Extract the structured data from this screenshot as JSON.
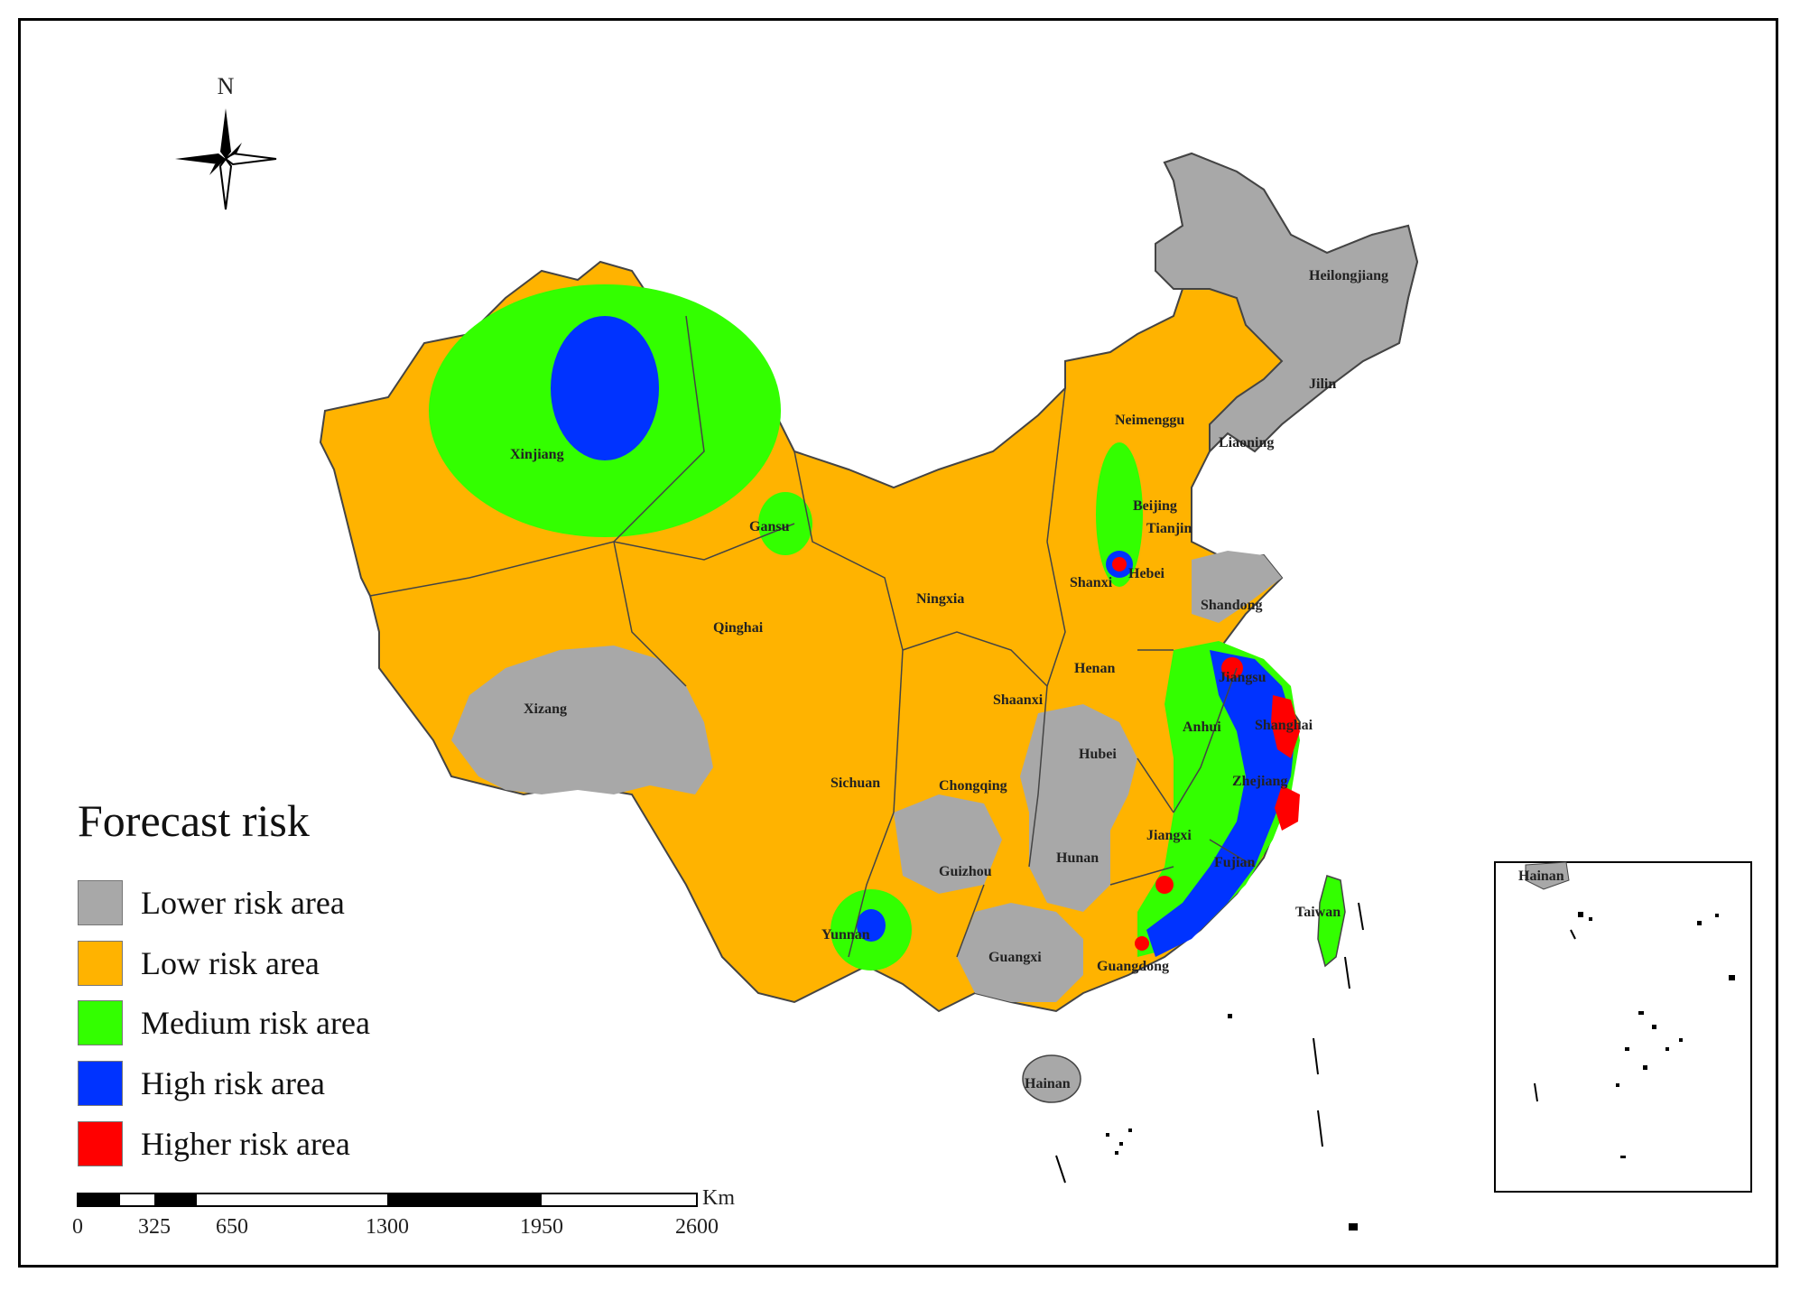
{
  "north_arrow": {
    "label": "N",
    "icon": "compass-rose-icon"
  },
  "legend": {
    "title": "Forecast risk",
    "items": [
      {
        "label": "Lower risk area",
        "color": "#a8a8a8"
      },
      {
        "label": "Low risk area",
        "color": "#ffb300"
      },
      {
        "label": "Medium risk area",
        "color": "#33ff00"
      },
      {
        "label": "High risk area",
        "color": "#0033ff"
      },
      {
        "label": "Higher risk area",
        "color": "#ff0000"
      }
    ]
  },
  "scale_bar": {
    "unit": "Km",
    "ticks": [
      "0",
      "325",
      "650",
      "1300",
      "1950",
      "2600"
    ]
  },
  "provinces": {
    "heilongjiang": "Heilongjiang",
    "jilin": "Jilin",
    "liaoning": "Liaoning",
    "neimenggu": "Neimenggu",
    "xinjiang": "Xinjiang",
    "gansu": "Gansu",
    "qinghai": "Qinghai",
    "xizang": "Xizang",
    "sichuan": "Sichuan",
    "yunnan": "Yunnan",
    "guizhou": "Guizhou",
    "guangxi": "Guangxi",
    "hainan": "Hainan",
    "hunan": "Hunan",
    "hubei": "Hubei",
    "henan": "Henan",
    "shanxi": "Shanxi",
    "shaanxi": "Shaanxi",
    "ningxia": "Ningxia",
    "chongqing": "Chongqing",
    "beijing": "Beijing",
    "tianjin": "Tianjin",
    "hebei": "Hebei",
    "shandong": "Shandong",
    "jiangsu": "Jiangsu",
    "anhui": "Anhui",
    "shanghai": "Shanghai",
    "zhejiang": "Zhejiang",
    "jiangxi": "Jiangxi",
    "fujian": "Fujian",
    "guangdong": "Guangdong",
    "taiwan": "Taiwan"
  },
  "inset": {
    "label": "Hainan"
  },
  "colors": {
    "lower": "#a8a8a8",
    "low": "#ffb300",
    "medium": "#33ff00",
    "high": "#0033ff",
    "higher": "#ff0000"
  }
}
